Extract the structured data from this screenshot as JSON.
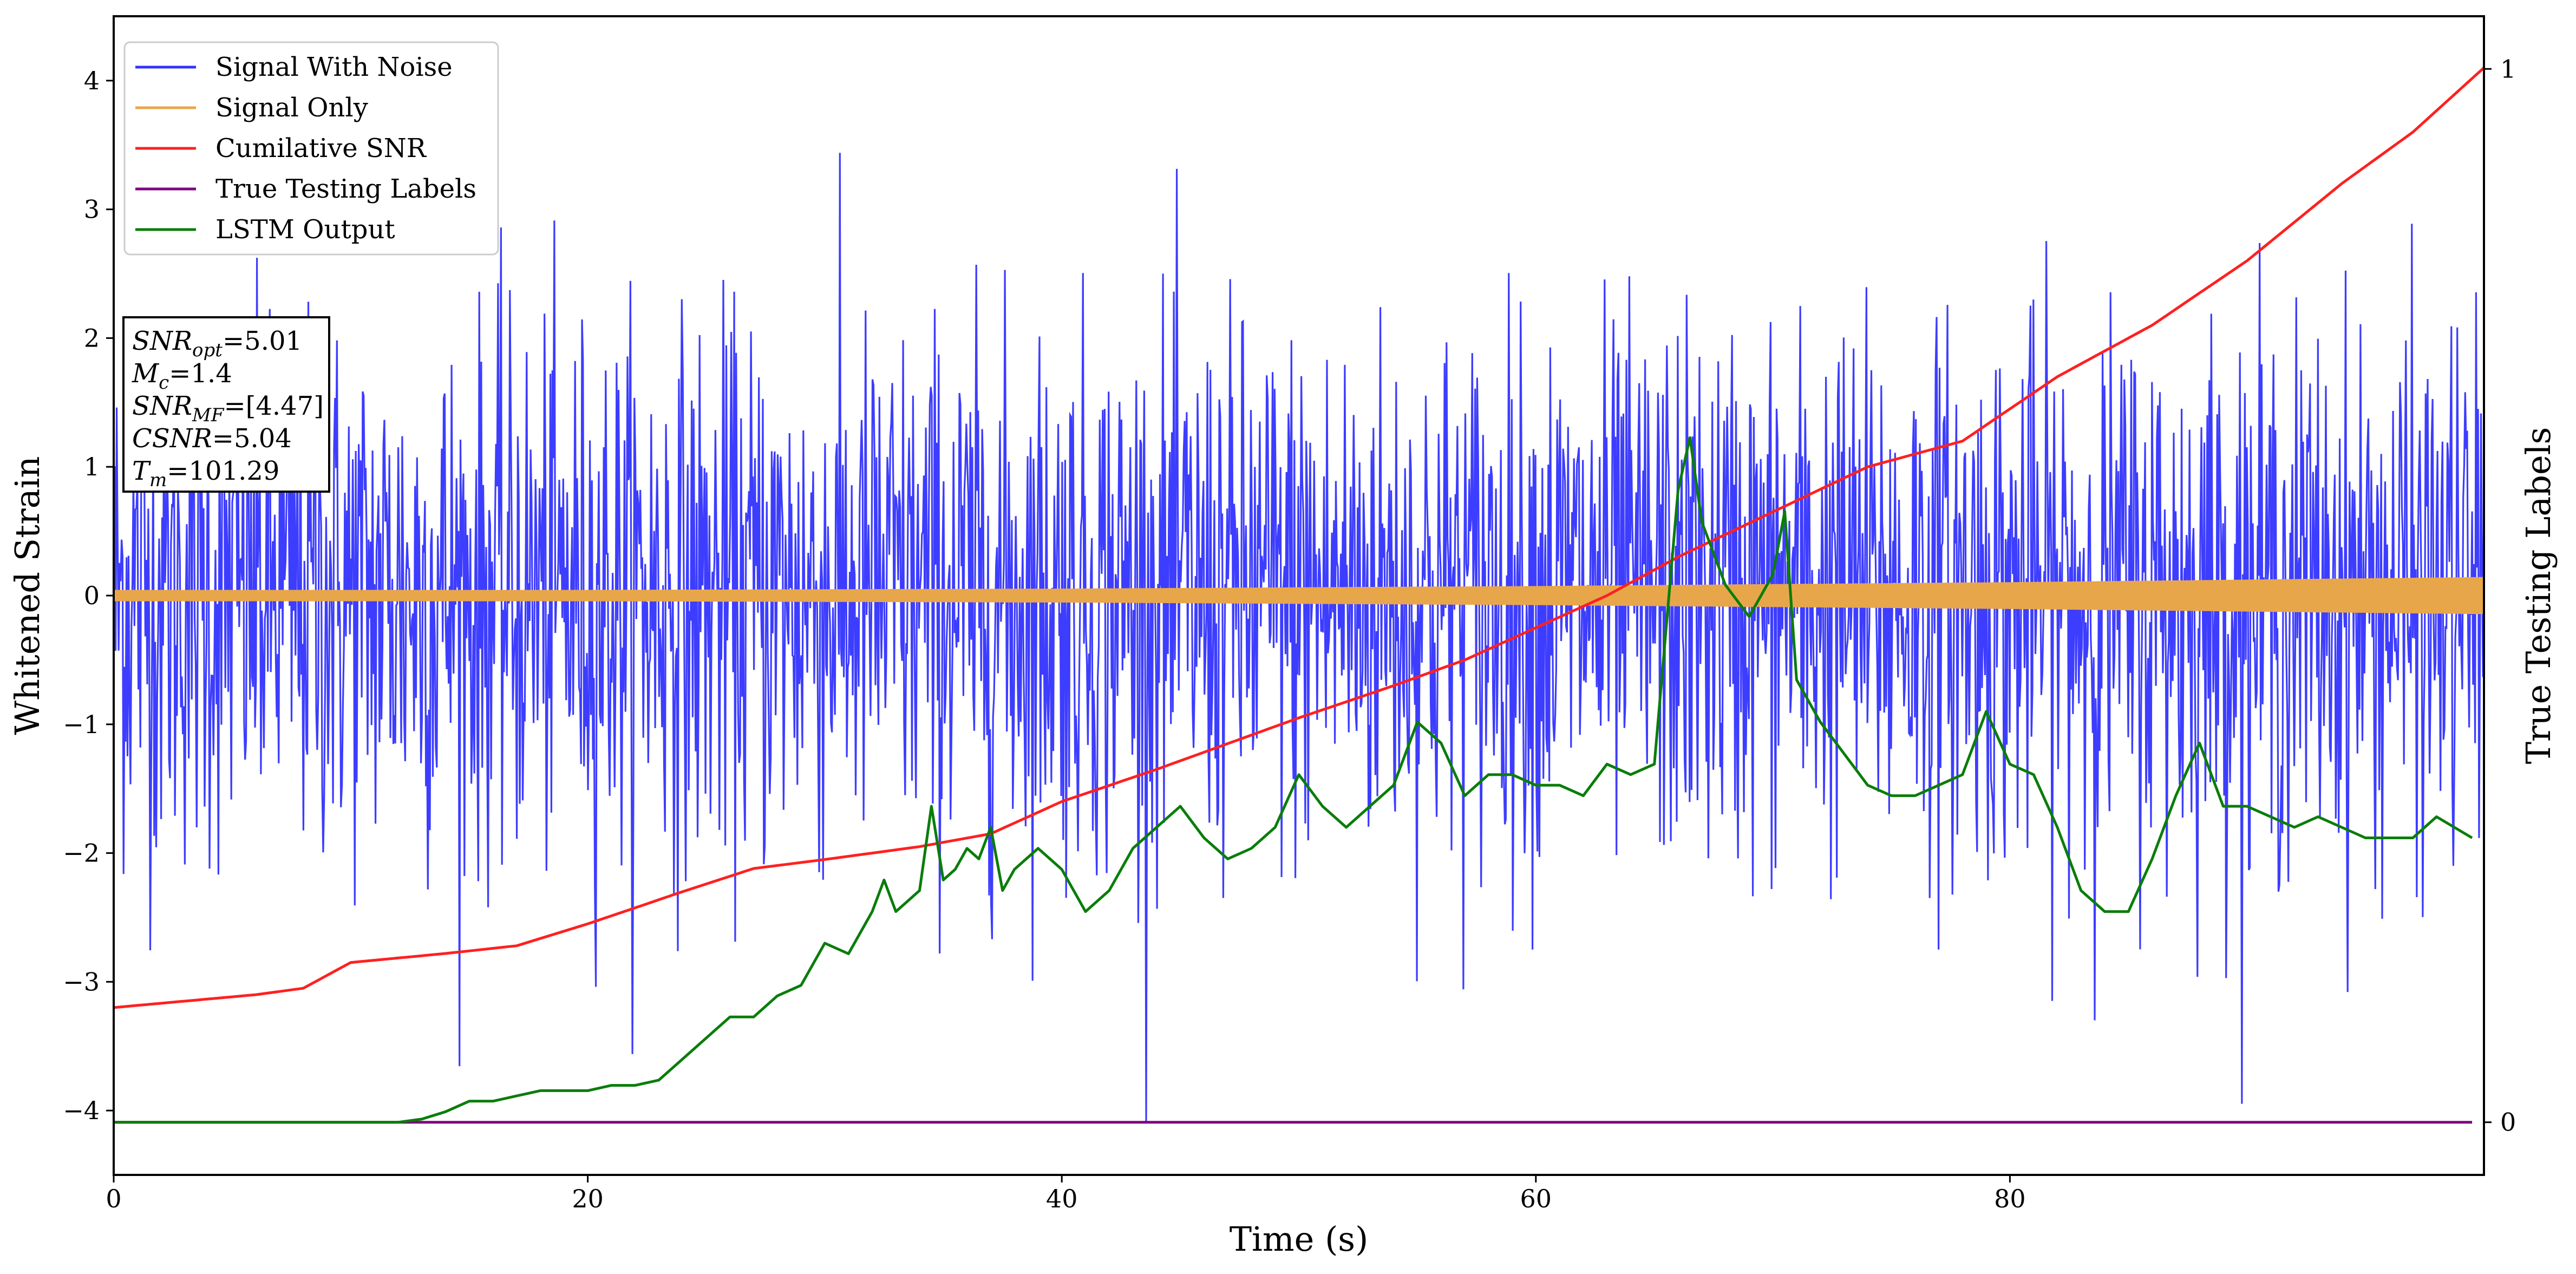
{
  "chart_data": {
    "type": "line",
    "xlabel": "Time (s)",
    "ylabel": "Whitened Strain",
    "y2label": "True Testing Labels",
    "xlim": [
      0,
      100
    ],
    "ylim": [
      -4.5,
      4.5
    ],
    "y2lim": [
      -0.05,
      1.05
    ],
    "xticks": [
      0,
      20,
      40,
      60,
      80
    ],
    "yticks": [
      -4,
      -3,
      -2,
      -1,
      0,
      1,
      2,
      3,
      4
    ],
    "y2ticks": [
      0,
      1
    ],
    "grid": false,
    "legend_position": "top-left",
    "annotation": {
      "lines": [
        {
          "var": "SNR",
          "sub": "opt",
          "value": "=5.01"
        },
        {
          "var": "M",
          "sub": "c",
          "value": "=1.4"
        },
        {
          "var": "SNR",
          "sub": "MF",
          "value": "=[4.47]"
        },
        {
          "var": "CSNR",
          "sub": "",
          "value": "=5.04"
        },
        {
          "var": "T",
          "sub": "m",
          "value": "=101.29"
        }
      ]
    },
    "series": [
      {
        "name": "Signal With Noise",
        "color": "#3333ff",
        "axis": "left",
        "kind": "noise",
        "amplitude_range": [
          -4.1,
          4.1
        ],
        "samples": 2400
      },
      {
        "name": "Signal Only",
        "color": "#e8a64a",
        "axis": "left",
        "kind": "envelope",
        "x": [
          0,
          20,
          40,
          60,
          80,
          100
        ],
        "amplitude": [
          0.04,
          0.04,
          0.05,
          0.07,
          0.1,
          0.14
        ]
      },
      {
        "name": "Cumilative SNR",
        "color": "#ff2020",
        "axis": "left",
        "x": [
          0,
          3,
          6,
          8,
          10,
          14,
          17,
          20,
          24,
          27,
          30,
          34,
          37,
          40,
          44,
          47,
          50,
          54,
          57,
          60,
          63,
          66,
          70,
          74,
          78,
          82,
          86,
          90,
          94,
          97,
          100
        ],
        "y": [
          -3.2,
          -3.15,
          -3.1,
          -3.05,
          -2.85,
          -2.78,
          -2.72,
          -2.55,
          -2.3,
          -2.12,
          -2.05,
          -1.95,
          -1.85,
          -1.6,
          -1.35,
          -1.15,
          -0.95,
          -0.7,
          -0.5,
          -0.25,
          0.0,
          0.3,
          0.65,
          1.0,
          1.2,
          1.7,
          2.1,
          2.6,
          3.2,
          3.6,
          4.1
        ]
      },
      {
        "name": "True Testing Labels",
        "color": "#800080",
        "axis": "right",
        "x": [
          0,
          99.5
        ],
        "y": [
          0,
          0
        ]
      },
      {
        "name": "LSTM Output",
        "color": "#0a7d0a",
        "axis": "right",
        "x": [
          0,
          12,
          13,
          14,
          15,
          16,
          17,
          18,
          19,
          20,
          21,
          22,
          23,
          24,
          25,
          26,
          27,
          28,
          29,
          30,
          31,
          32,
          32.5,
          33,
          33.5,
          34,
          34.5,
          35,
          35.5,
          36,
          36.5,
          37,
          37.5,
          38,
          39,
          40,
          41,
          42,
          43,
          44,
          45,
          46,
          47,
          48,
          49,
          50,
          51,
          52,
          53,
          54,
          55,
          56,
          57,
          58,
          59,
          60,
          61,
          62,
          63,
          64,
          65,
          66,
          66.5,
          67,
          68,
          69,
          70,
          70.5,
          71,
          72,
          73,
          74,
          75,
          76,
          77,
          78,
          79,
          80,
          81,
          82,
          83,
          84,
          85,
          86,
          87,
          88,
          89,
          90,
          91,
          92,
          93,
          94,
          95,
          96,
          97,
          98,
          99.5
        ],
        "y": [
          0,
          0,
          0.003,
          0.01,
          0.02,
          0.02,
          0.025,
          0.03,
          0.03,
          0.03,
          0.035,
          0.035,
          0.04,
          0.06,
          0.08,
          0.1,
          0.1,
          0.12,
          0.13,
          0.17,
          0.16,
          0.2,
          0.23,
          0.2,
          0.21,
          0.22,
          0.3,
          0.23,
          0.24,
          0.26,
          0.25,
          0.28,
          0.22,
          0.24,
          0.26,
          0.24,
          0.2,
          0.22,
          0.26,
          0.28,
          0.3,
          0.27,
          0.25,
          0.26,
          0.28,
          0.33,
          0.3,
          0.28,
          0.3,
          0.32,
          0.38,
          0.36,
          0.31,
          0.33,
          0.33,
          0.32,
          0.32,
          0.31,
          0.34,
          0.33,
          0.34,
          0.6,
          0.65,
          0.57,
          0.51,
          0.48,
          0.52,
          0.58,
          0.42,
          0.38,
          0.35,
          0.32,
          0.31,
          0.31,
          0.32,
          0.33,
          0.39,
          0.34,
          0.33,
          0.28,
          0.22,
          0.2,
          0.2,
          0.25,
          0.31,
          0.36,
          0.3,
          0.3,
          0.29,
          0.28,
          0.29,
          0.28,
          0.27,
          0.27,
          0.27,
          0.29,
          0.27
        ]
      }
    ]
  }
}
